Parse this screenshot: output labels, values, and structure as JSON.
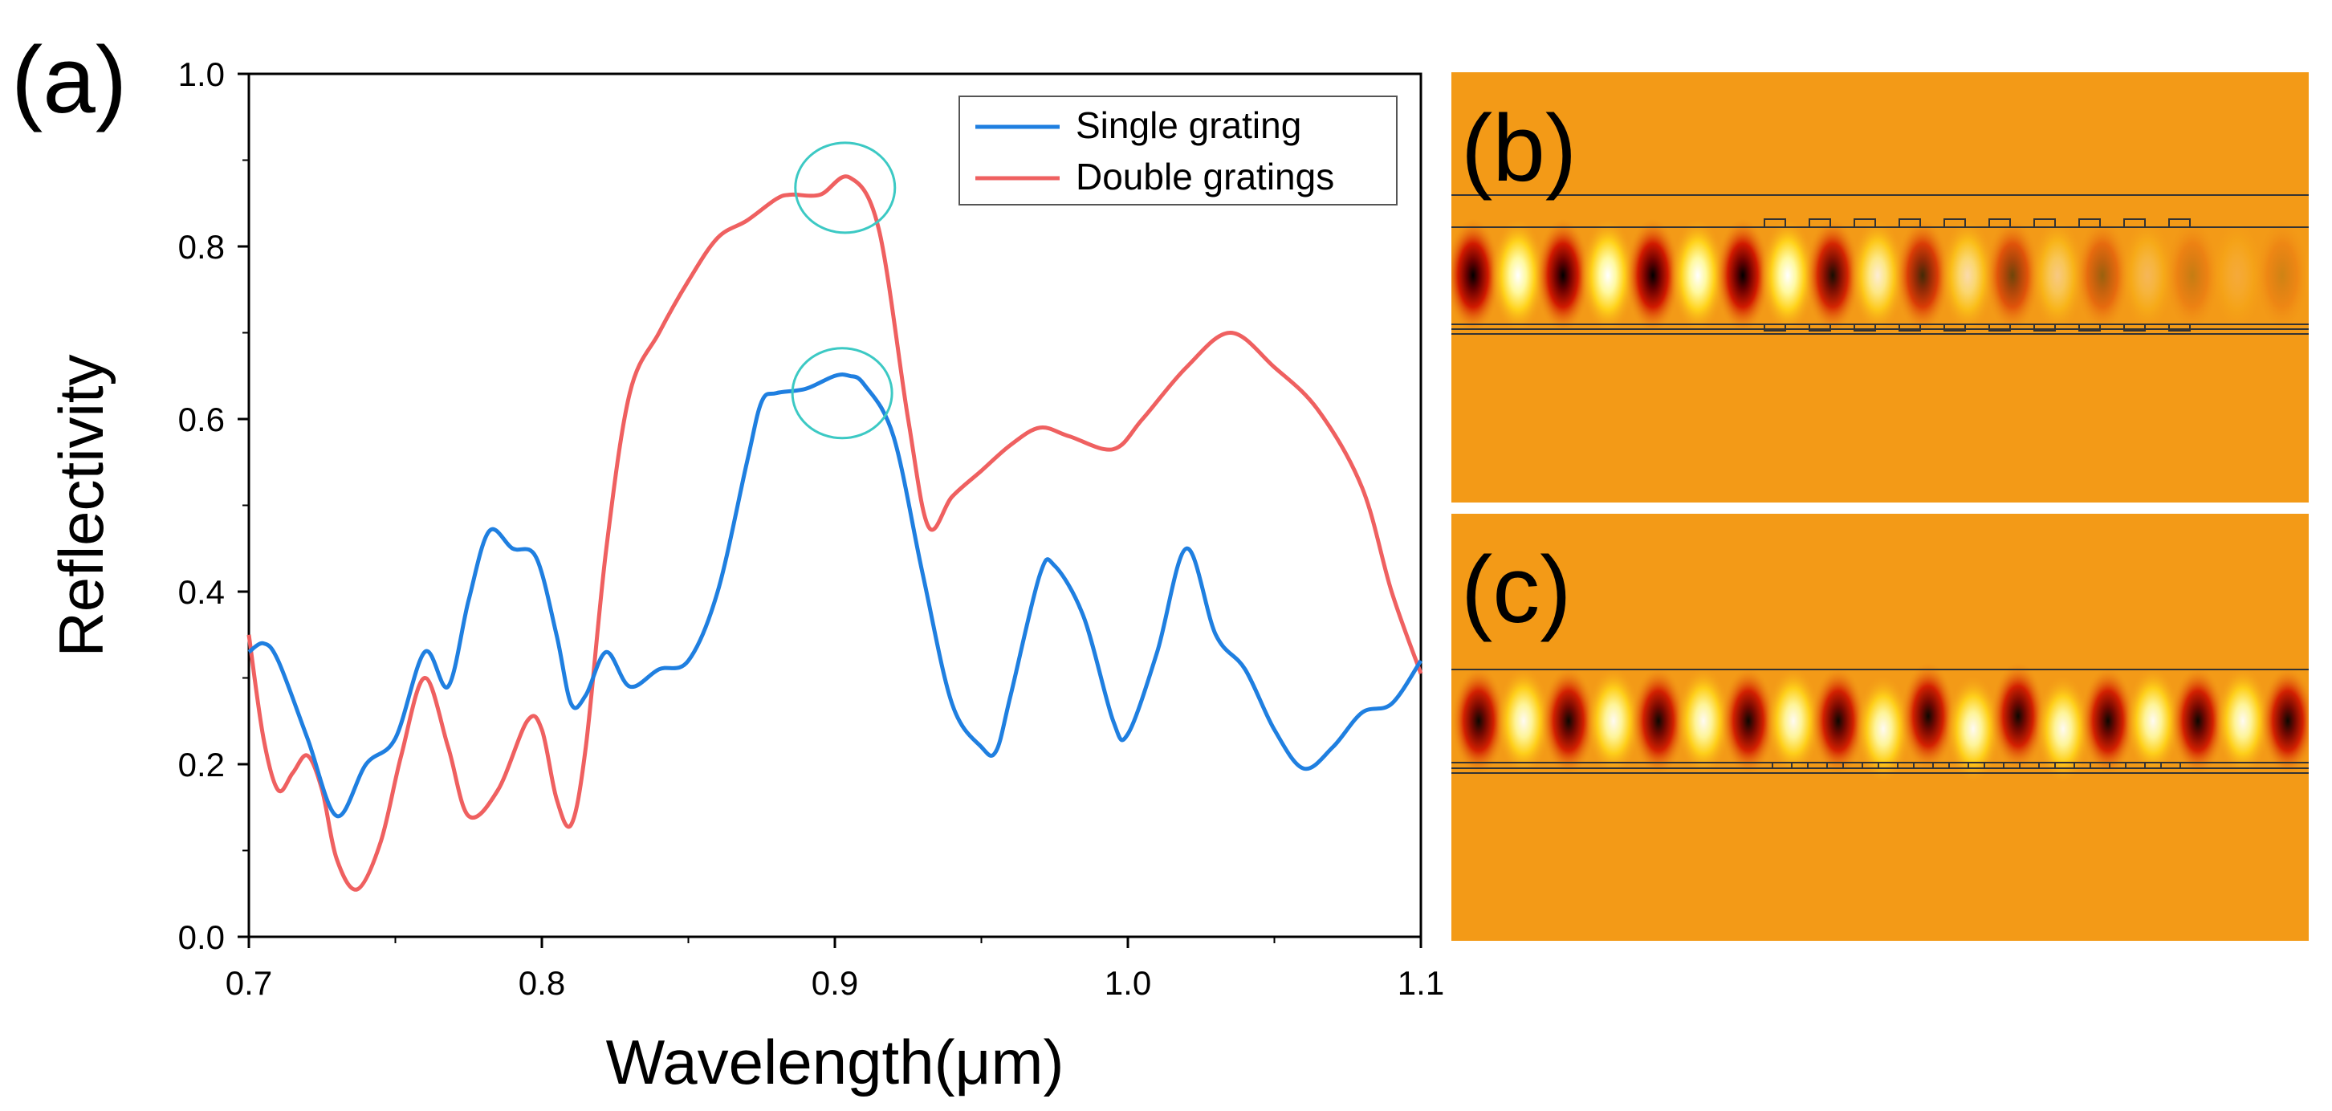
{
  "figure": {
    "panel_a_label": "(a)",
    "panel_b_label": "(b)",
    "panel_c_label": "(c)"
  },
  "colors": {
    "single": "#1f7fe0",
    "double": "#ef6060",
    "highlight": "#3cc9c4",
    "field_bg": "#f39a17"
  },
  "chart_data": {
    "type": "line",
    "title": "",
    "xlabel": "Wavelength(μm)",
    "ylabel": "Reflectivity",
    "xlim": [
      0.7,
      1.1
    ],
    "ylim": [
      0.0,
      1.0
    ],
    "xticks": [
      "0.7",
      "0.8",
      "0.9",
      "1.0",
      "1.1"
    ],
    "xtick_values": [
      0.7,
      0.8,
      0.9,
      1.0,
      1.1
    ],
    "yticks": [
      "0.0",
      "0.2",
      "0.4",
      "0.6",
      "0.8",
      "1.0"
    ],
    "ytick_values": [
      0.0,
      0.2,
      0.4,
      0.6,
      0.8,
      1.0
    ],
    "legend_position": "top-right",
    "series": [
      {
        "name": "Single grating",
        "color": "#1f7fe0",
        "x": [
          0.7,
          0.705,
          0.71,
          0.72,
          0.73,
          0.74,
          0.75,
          0.76,
          0.768,
          0.775,
          0.782,
          0.79,
          0.798,
          0.805,
          0.81,
          0.815,
          0.822,
          0.83,
          0.84,
          0.85,
          0.86,
          0.87,
          0.875,
          0.88,
          0.89,
          0.9,
          0.905,
          0.91,
          0.92,
          0.93,
          0.94,
          0.95,
          0.955,
          0.96,
          0.97,
          0.975,
          0.985,
          0.995,
          1.0,
          1.01,
          1.02,
          1.03,
          1.04,
          1.05,
          1.06,
          1.07,
          1.08,
          1.09,
          1.1
        ],
        "y": [
          0.33,
          0.34,
          0.32,
          0.23,
          0.14,
          0.2,
          0.23,
          0.33,
          0.29,
          0.39,
          0.47,
          0.45,
          0.44,
          0.35,
          0.27,
          0.28,
          0.33,
          0.29,
          0.31,
          0.32,
          0.4,
          0.55,
          0.62,
          0.63,
          0.635,
          0.65,
          0.65,
          0.64,
          0.58,
          0.42,
          0.27,
          0.22,
          0.215,
          0.28,
          0.42,
          0.43,
          0.37,
          0.25,
          0.235,
          0.33,
          0.45,
          0.35,
          0.31,
          0.24,
          0.195,
          0.22,
          0.26,
          0.27,
          0.32
        ]
      },
      {
        "name": "Double gratings",
        "color": "#ef6060",
        "x": [
          0.7,
          0.705,
          0.71,
          0.715,
          0.72,
          0.725,
          0.73,
          0.737,
          0.745,
          0.752,
          0.76,
          0.768,
          0.775,
          0.785,
          0.795,
          0.8,
          0.805,
          0.81,
          0.815,
          0.822,
          0.83,
          0.84,
          0.85,
          0.86,
          0.87,
          0.88,
          0.885,
          0.895,
          0.905,
          0.915,
          0.925,
          0.932,
          0.94,
          0.95,
          0.96,
          0.97,
          0.98,
          0.995,
          1.005,
          1.02,
          1.035,
          1.05,
          1.065,
          1.08,
          1.09,
          1.1
        ],
        "y": [
          0.35,
          0.23,
          0.17,
          0.19,
          0.21,
          0.17,
          0.09,
          0.055,
          0.11,
          0.21,
          0.3,
          0.22,
          0.14,
          0.17,
          0.25,
          0.24,
          0.16,
          0.13,
          0.22,
          0.45,
          0.63,
          0.7,
          0.76,
          0.81,
          0.83,
          0.855,
          0.86,
          0.86,
          0.88,
          0.82,
          0.6,
          0.475,
          0.51,
          0.54,
          0.57,
          0.59,
          0.58,
          0.565,
          0.6,
          0.66,
          0.7,
          0.66,
          0.61,
          0.52,
          0.4,
          0.305
        ]
      }
    ],
    "annotations": [
      {
        "type": "ellipse",
        "x": 0.9035,
        "y": 0.868,
        "note": "circle around double-grating peak"
      },
      {
        "type": "ellipse",
        "x": 0.9025,
        "y": 0.63,
        "note": "circle around single-grating peak"
      }
    ]
  }
}
